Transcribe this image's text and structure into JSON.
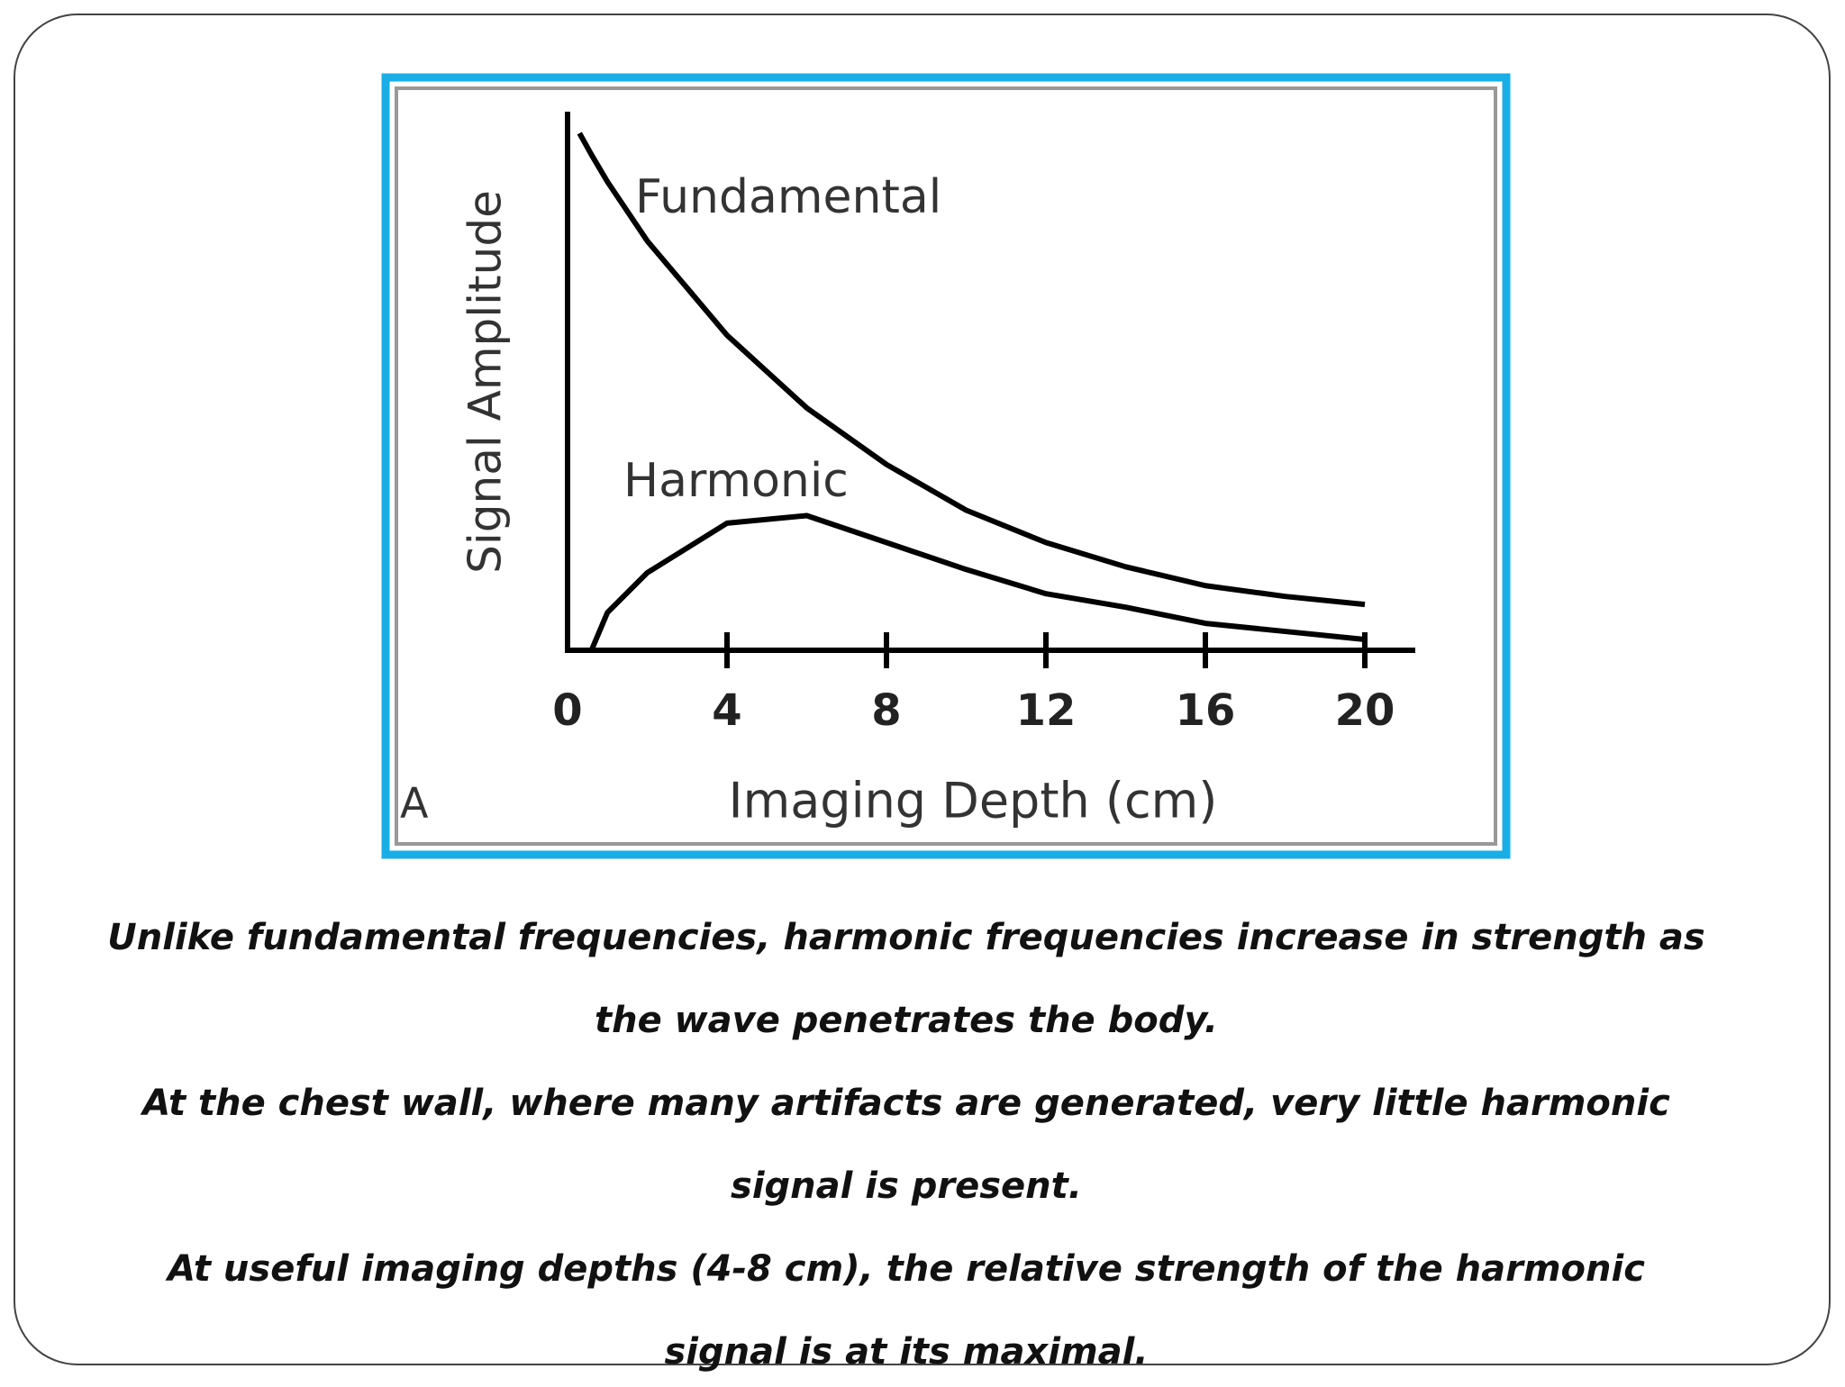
{
  "chart_data": {
    "type": "line",
    "x_label": "Imaging Depth (cm)",
    "y_label": "Signal Amplitude",
    "panel_label": "A",
    "x": [
      0.3,
      0.6,
      1,
      2,
      4,
      6,
      8,
      10,
      12,
      14,
      16,
      18,
      20
    ],
    "series": [
      {
        "name": "Fundamental",
        "color": "#000000",
        "values": [
          96,
          92,
          87,
          76,
          58.5,
          45,
          34.5,
          26,
          20,
          15.5,
          12,
          10,
          8.5
        ]
      },
      {
        "name": "Harmonic",
        "color": "#000000",
        "values": [
          null,
          0,
          7,
          14.4,
          23.6,
          25,
          20,
          15,
          10.5,
          8,
          5,
          3.5,
          2
        ]
      }
    ],
    "xlim": [
      0,
      20
    ],
    "ylim": [
      0,
      100
    ],
    "xticks": [
      0,
      4,
      8,
      12,
      16,
      20
    ]
  },
  "body_text": [
    "Unlike fundamental frequencies, harmonic frequencies increase in strength as",
    "the wave penetrates the body.",
    "At the chest wall, where many artifacts are generated, very little harmonic",
    "signal is present.",
    "At useful imaging depths (4-8 cm), the relative strength of the harmonic",
    "signal is at its maximal."
  ]
}
